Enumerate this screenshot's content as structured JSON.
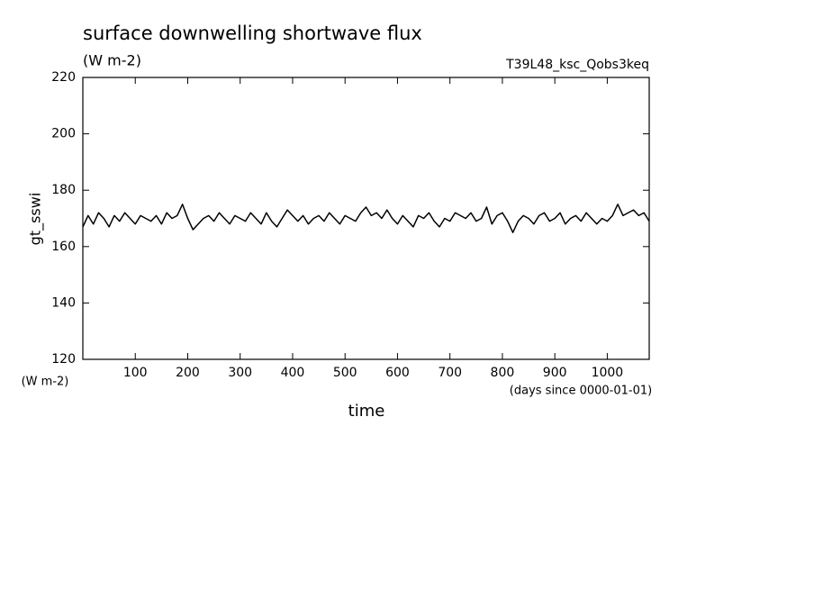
{
  "chart_data": {
    "type": "line",
    "title": "surface downwelling shortwave flux",
    "subtitle": "(W m-2)",
    "annotation": "T39L48_ksc_Qobs3keq",
    "ylabel": "gt_sswi",
    "yunits": "(W m-2)",
    "xunits": "(days since 0000-01-01)",
    "xlabel": "time",
    "xlim": [
      0,
      1080
    ],
    "ylim": [
      120,
      220
    ],
    "xticks": [
      100,
      200,
      300,
      400,
      500,
      600,
      700,
      800,
      900,
      1000
    ],
    "yticks": [
      120,
      140,
      160,
      180,
      200,
      220
    ],
    "x": [
      0,
      10,
      20,
      30,
      40,
      50,
      60,
      70,
      80,
      90,
      100,
      110,
      120,
      130,
      140,
      150,
      160,
      170,
      180,
      190,
      200,
      210,
      220,
      230,
      240,
      250,
      260,
      270,
      280,
      290,
      300,
      310,
      320,
      330,
      340,
      350,
      360,
      370,
      380,
      390,
      400,
      410,
      420,
      430,
      440,
      450,
      460,
      470,
      480,
      490,
      500,
      510,
      520,
      530,
      540,
      550,
      560,
      570,
      580,
      590,
      600,
      610,
      620,
      630,
      640,
      650,
      660,
      670,
      680,
      690,
      700,
      710,
      720,
      730,
      740,
      750,
      760,
      770,
      780,
      790,
      800,
      810,
      820,
      830,
      840,
      850,
      860,
      870,
      880,
      890,
      900,
      910,
      920,
      930,
      940,
      950,
      960,
      970,
      980,
      990,
      1000,
      1010,
      1020,
      1030,
      1040,
      1050,
      1060,
      1070,
      1080
    ],
    "series": [
      {
        "color": "#000000",
        "values": [
          167,
          171,
          168,
          172,
          170,
          167,
          171,
          169,
          172,
          170,
          168,
          171,
          170,
          169,
          171,
          168,
          172,
          170,
          171,
          175,
          170,
          166,
          168,
          170,
          171,
          169,
          172,
          170,
          168,
          171,
          170,
          169,
          172,
          170,
          168,
          172,
          169,
          167,
          170,
          173,
          171,
          169,
          171,
          168,
          170,
          171,
          169,
          172,
          170,
          168,
          171,
          170,
          169,
          172,
          174,
          171,
          172,
          170,
          173,
          170,
          168,
          171,
          169,
          167,
          171,
          170,
          172,
          169,
          167,
          170,
          169,
          172,
          171,
          170,
          172,
          169,
          170,
          174,
          168,
          171,
          172,
          169,
          165,
          169,
          171,
          170,
          168,
          171,
          172,
          169,
          170,
          172,
          168,
          170,
          171,
          169,
          172,
          170,
          168,
          170,
          169,
          171,
          175,
          171,
          172,
          173,
          171,
          172,
          169
        ]
      }
    ]
  }
}
